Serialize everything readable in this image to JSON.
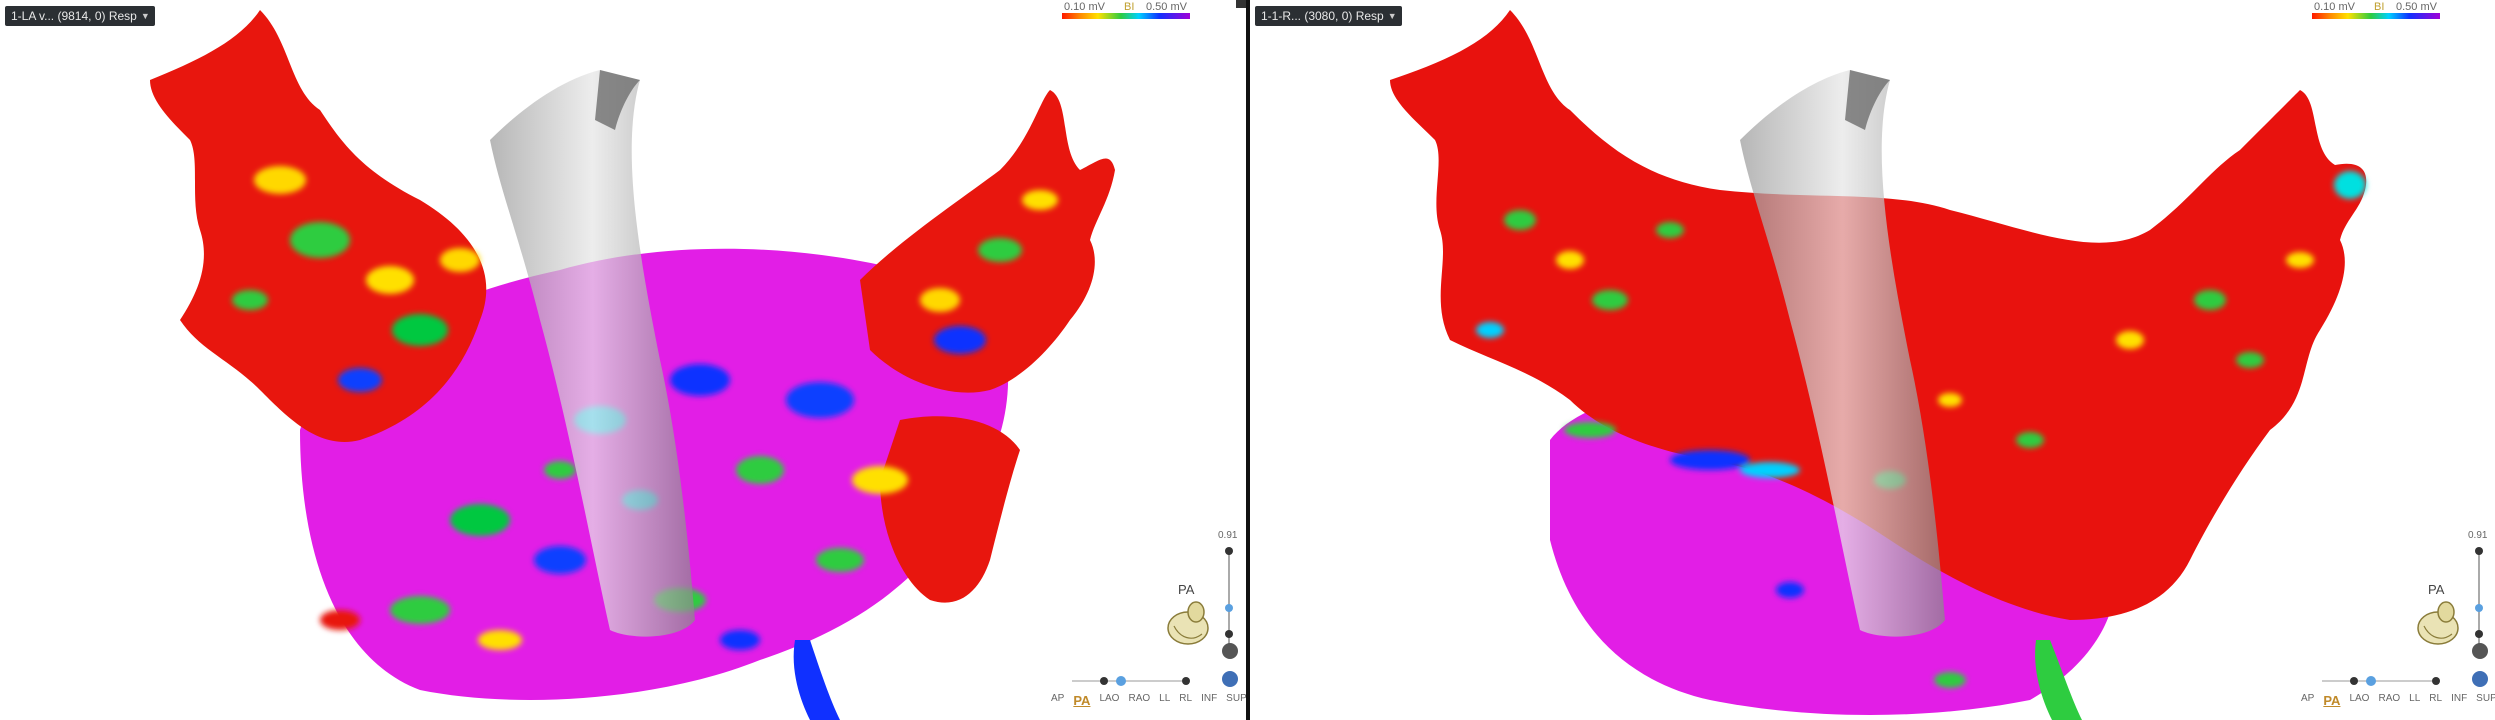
{
  "left_map": {
    "title": "1-LA v... (9814, 0) Resp",
    "legend": {
      "min": "0.10 mV",
      "mode": "BI",
      "max": "0.50 mV"
    },
    "zoom_value": "0.91",
    "orientation": "PA",
    "views": [
      "AP",
      "PA",
      "LAO",
      "RAO",
      "LL",
      "RL",
      "INF",
      "SUP"
    ],
    "active_view": "PA"
  },
  "right_map": {
    "title": "1-1-R... (3080, 0) Resp",
    "legend": {
      "min": "0.10 mV",
      "mode": "BI",
      "max": "0.50 mV"
    },
    "zoom_value": "0.91",
    "orientation": "PA",
    "views": [
      "AP",
      "PA",
      "LAO",
      "RAO",
      "LL",
      "RL",
      "INF",
      "SUP"
    ],
    "active_view": "PA"
  },
  "colors": {
    "low": "#ff1a00",
    "high": "#a000d8",
    "scar_red": "#e8120e",
    "healthy_magenta": "#e21ee6",
    "header_bg": "#2b2f33",
    "active_view": "#c08a2a"
  },
  "icons": [
    "chevron-down-icon",
    "heart-orientation-icon",
    "rotate-icon",
    "reset-icon"
  ]
}
